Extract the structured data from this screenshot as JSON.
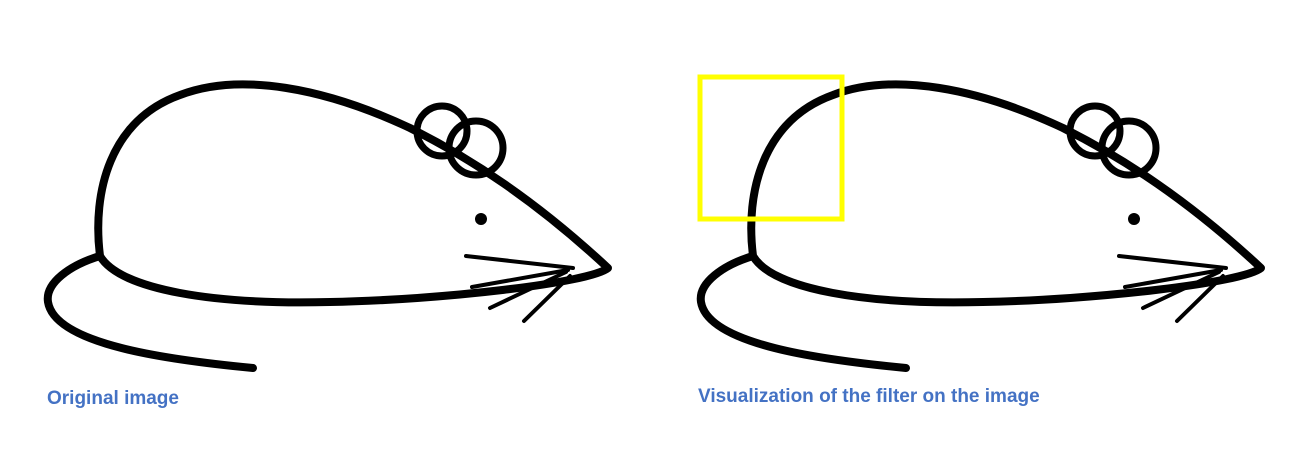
{
  "captions": {
    "original": "Original image",
    "visualization": "Visualization of the filter on the image"
  },
  "colors": {
    "caption": "#4472c4",
    "outline": "#000000",
    "filter_box": "#ffff00",
    "background": "#ffffff"
  },
  "icons": {
    "mouse": "mouse-drawing-icon",
    "filter": "filter-box"
  }
}
